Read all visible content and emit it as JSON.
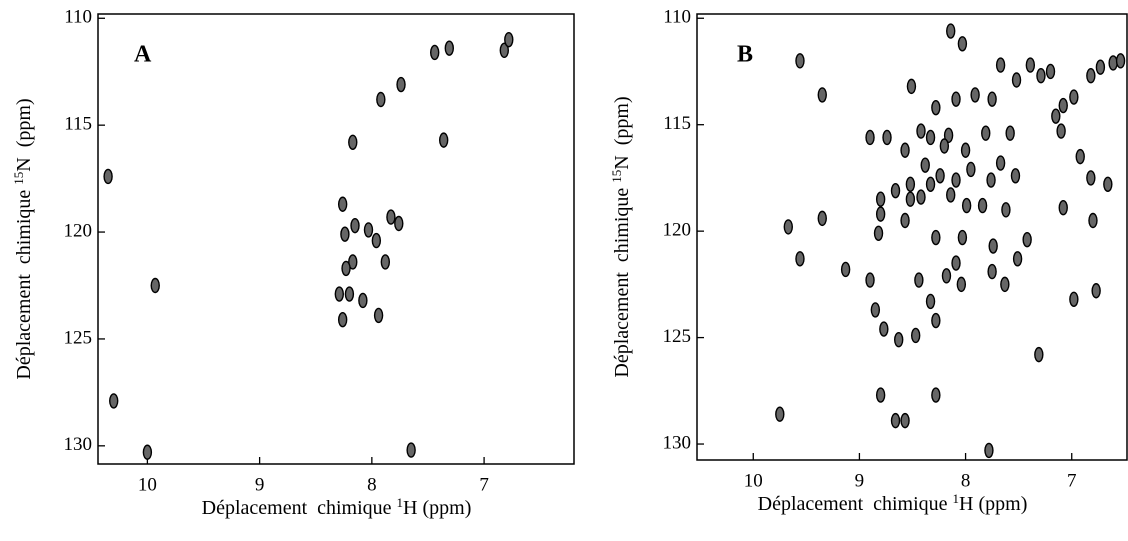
{
  "chart_data": [
    {
      "type": "scatter",
      "panel_label": "A",
      "color": "#000000",
      "xlabel": [
        "Déplacement  chimique ",
        "1",
        "H (ppm)"
      ],
      "ylabel": [
        "Déplacement  chimique ",
        "15",
        "N  (ppm)"
      ],
      "xlim": [
        10.44,
        6.19
      ],
      "ylim": [
        109.8,
        130.85
      ],
      "xticks": [
        10,
        9,
        8,
        7
      ],
      "yticks": [
        110,
        115,
        120,
        125,
        130
      ],
      "x": [
        7.44,
        7.31,
        6.82,
        6.78,
        7.74,
        7.92,
        8.17,
        7.36,
        10.35,
        9.93,
        8.26,
        8.24,
        8.15,
        8.03,
        7.96,
        7.83,
        7.76,
        7.88,
        8.17,
        8.23,
        8.29,
        8.2,
        8.08,
        7.94,
        8.26,
        10.3,
        10.0,
        7.65
      ],
      "y": [
        111.6,
        111.4,
        111.5,
        111.0,
        113.1,
        113.8,
        115.8,
        115.7,
        117.4,
        122.5,
        118.7,
        120.1,
        119.7,
        119.9,
        120.4,
        119.3,
        119.6,
        121.4,
        121.4,
        121.7,
        122.9,
        122.9,
        123.2,
        123.9,
        124.1,
        127.9,
        130.3,
        130.2
      ]
    },
    {
      "type": "scatter",
      "panel_label": "B",
      "color": "#000000",
      "xlabel": [
        "Déplacement  chimique ",
        "1",
        "H (ppm)"
      ],
      "ylabel": [
        "Déplacement  chimique ",
        "15",
        "N  (ppm)"
      ],
      "xlim": [
        10.53,
        6.47
      ],
      "ylim": [
        109.8,
        130.75
      ],
      "xticks": [
        10,
        9,
        8,
        7
      ],
      "yticks": [
        110,
        115,
        120,
        125,
        130
      ],
      "x": [
        8.14,
        8.03,
        7.67,
        7.52,
        7.39,
        7.29,
        7.2,
        6.82,
        6.73,
        6.61,
        6.54,
        6.98,
        7.08,
        7.15,
        9.35,
        9.56,
        8.51,
        8.28,
        8.09,
        7.91,
        7.75,
        7.58,
        7.81,
        8.16,
        8.33,
        8.42,
        8.9,
        8.74,
        8.57,
        8.2,
        8.0,
        7.1,
        6.92,
        7.67,
        8.38,
        8.24,
        8.09,
        7.95,
        7.76,
        7.53,
        8.52,
        8.66,
        8.33,
        6.82,
        6.66,
        8.8,
        8.52,
        8.42,
        8.14,
        7.99,
        7.84,
        7.62,
        8.8,
        8.57,
        7.08,
        6.8,
        9.35,
        9.67,
        8.82,
        8.28,
        8.03,
        7.74,
        7.42,
        7.51,
        8.09,
        8.18,
        8.04,
        7.75,
        7.63,
        9.56,
        9.13,
        8.9,
        8.44,
        8.33,
        6.77,
        8.28,
        8.85,
        8.77,
        8.47,
        6.98,
        8.63,
        7.31,
        8.8,
        8.28,
        9.75,
        8.57,
        8.66,
        7.78
      ],
      "y": [
        110.6,
        111.2,
        112.2,
        112.9,
        112.2,
        112.7,
        112.5,
        112.7,
        112.3,
        112.1,
        112.0,
        113.7,
        114.1,
        114.6,
        113.6,
        112.0,
        113.2,
        114.2,
        113.8,
        113.6,
        113.8,
        115.4,
        115.4,
        115.5,
        115.6,
        115.3,
        115.6,
        115.6,
        116.2,
        116.0,
        116.2,
        115.3,
        116.5,
        116.8,
        116.9,
        117.4,
        117.6,
        117.1,
        117.6,
        117.4,
        117.8,
        118.1,
        117.8,
        117.5,
        117.8,
        118.5,
        118.5,
        118.4,
        118.3,
        118.8,
        118.8,
        119.0,
        119.2,
        119.5,
        118.9,
        119.5,
        119.4,
        119.8,
        120.1,
        120.3,
        120.3,
        120.7,
        120.4,
        121.3,
        121.5,
        122.1,
        122.5,
        121.9,
        122.5,
        121.3,
        121.8,
        122.3,
        122.3,
        123.3,
        122.8,
        124.2,
        123.7,
        124.6,
        124.9,
        123.2,
        125.1,
        125.8,
        127.7,
        127.7,
        128.6,
        128.9,
        128.9,
        130.3
      ]
    }
  ]
}
